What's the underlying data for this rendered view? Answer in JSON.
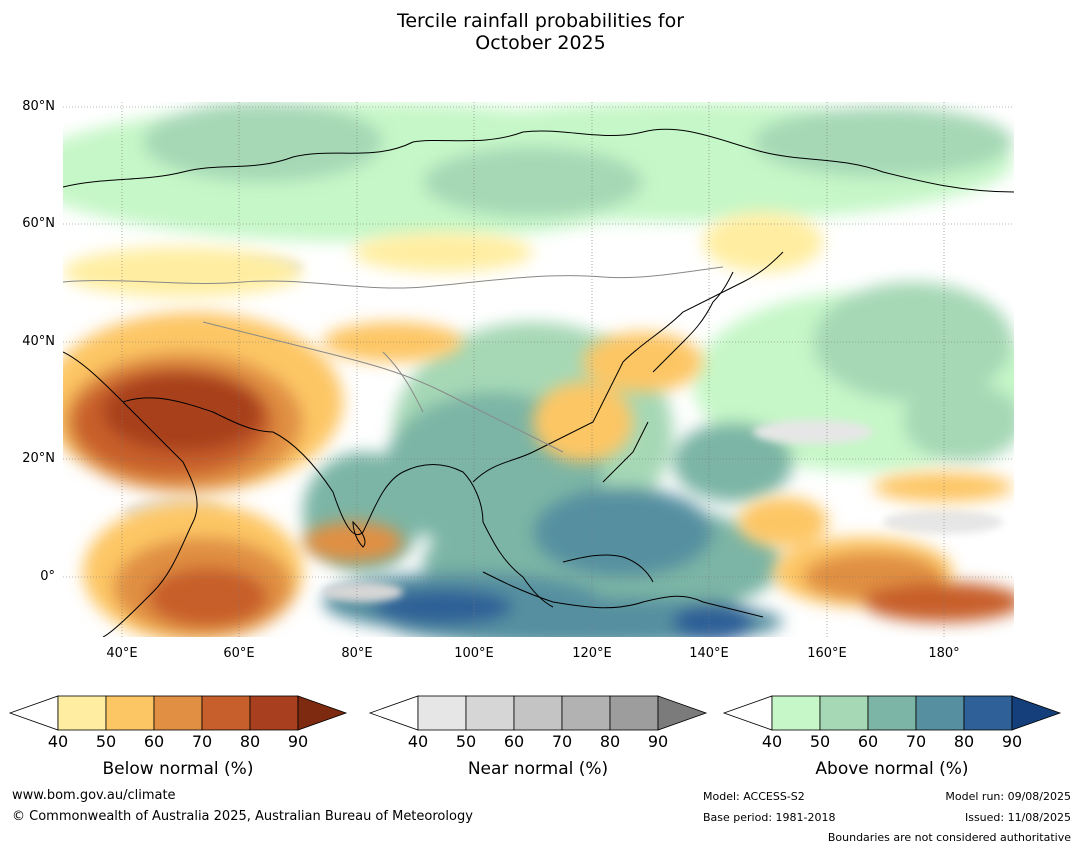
{
  "header": {
    "title_line1": "Tercile rainfall probabilities for",
    "title_line2": "October 2025"
  },
  "map": {
    "lat_labels": [
      "80°N",
      "60°N",
      "40°N",
      "20°N",
      "0°"
    ],
    "lon_labels": [
      "40°E",
      "60°E",
      "80°E",
      "100°E",
      "120°E",
      "140°E",
      "160°E",
      "180°"
    ],
    "lon_range": [
      30,
      192
    ],
    "lat_range": [
      -10,
      81
    ]
  },
  "legends": [
    {
      "name": "below",
      "title": "Below normal (%)",
      "ticks": [
        "40",
        "50",
        "60",
        "70",
        "80",
        "90"
      ],
      "colors": [
        "#ffeea1",
        "#fdc665",
        "#e08f43",
        "#c75f2c",
        "#a8401f",
        "#7d2a10"
      ]
    },
    {
      "name": "near",
      "title": "Near normal (%)",
      "ticks": [
        "40",
        "50",
        "60",
        "70",
        "80",
        "90"
      ],
      "colors": [
        "#e6e6e6",
        "#d6d6d6",
        "#c4c4c4",
        "#b2b2b2",
        "#9d9d9d",
        "#7b7b7b"
      ]
    },
    {
      "name": "above",
      "title": "Above normal (%)",
      "ticks": [
        "40",
        "50",
        "60",
        "70",
        "80",
        "90"
      ],
      "colors": [
        "#c6f7c8",
        "#a6d8b6",
        "#7cb5a5",
        "#5690a0",
        "#2f6097",
        "#143f7a"
      ]
    }
  ],
  "footer": {
    "website": "www.bom.gov.au/climate",
    "copyright": "© Commonwealth of Australia 2025, Australian Bureau of Meteorology",
    "model": "Model: ACCESS-S2",
    "base_period": "Base period: 1981-2018",
    "model_run": "Model run: 09/08/2025",
    "issued": "Issued: 11/08/2025",
    "disclaimer": "Boundaries are not considered authoritative"
  }
}
